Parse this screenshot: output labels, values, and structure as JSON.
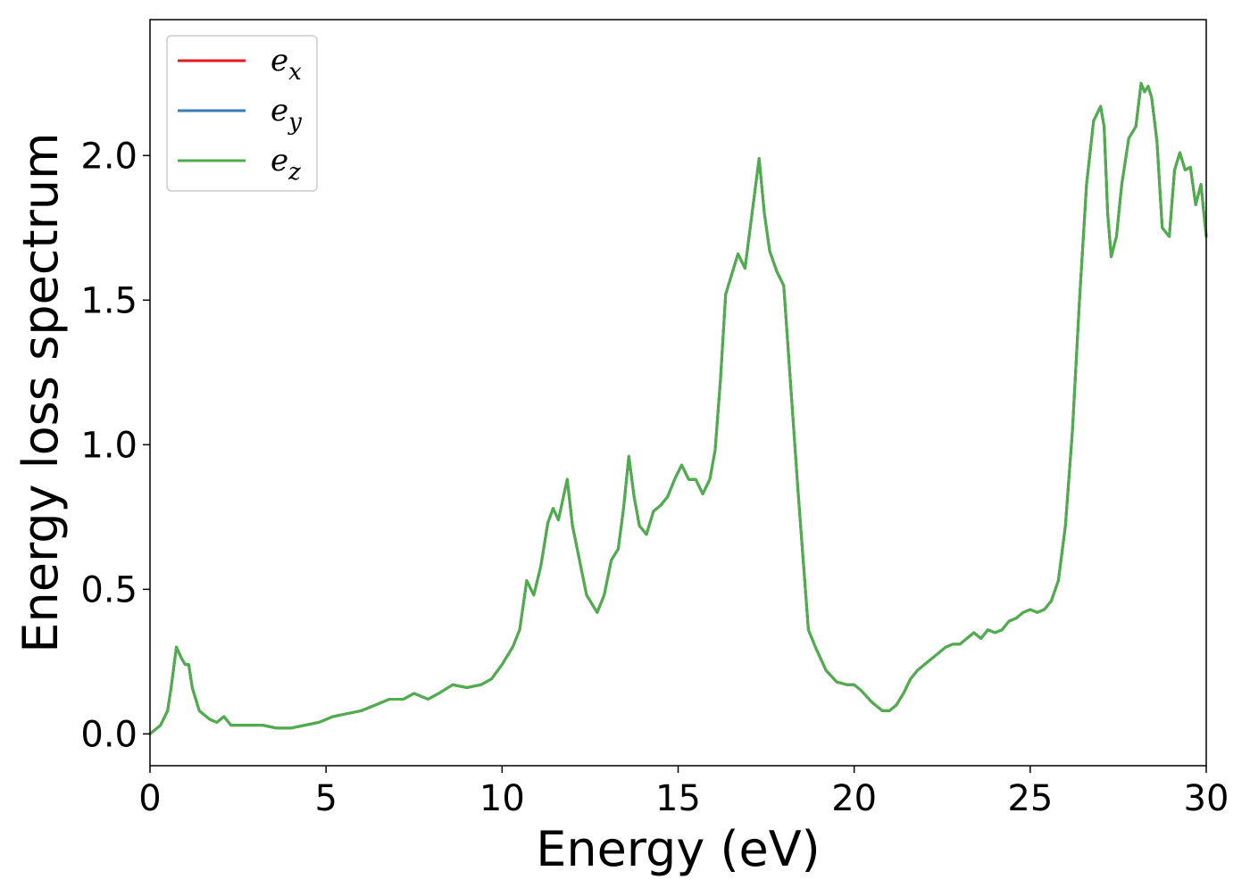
{
  "chart_data": {
    "type": "line",
    "title": "",
    "xlabel": "Energy (eV)",
    "ylabel": "Energy loss spectrum",
    "xlim": [
      0,
      30
    ],
    "ylim": [
      -0.11,
      2.47
    ],
    "xticks": [
      0,
      5,
      10,
      15,
      20,
      25,
      30
    ],
    "xtick_labels": [
      "0",
      "5",
      "10",
      "15",
      "20",
      "25",
      "30"
    ],
    "yticks": [
      0.0,
      0.5,
      1.0,
      1.5,
      2.0
    ],
    "ytick_labels": [
      "0.0",
      "0.5",
      "1.0",
      "1.5",
      "2.0"
    ],
    "grid": false,
    "legend_position": "top-left",
    "series": [
      {
        "name": "e_x",
        "label_base": "e",
        "label_sub": "x",
        "color": "#e41a1c"
      },
      {
        "name": "e_y",
        "label_base": "e",
        "label_sub": "y",
        "color": "#377eb8"
      },
      {
        "name": "e_z",
        "label_base": "e",
        "label_sub": "z",
        "color": "#4daf4a"
      }
    ],
    "x": [
      0,
      0.3,
      0.5,
      0.6,
      0.75,
      0.9,
      1.0,
      1.1,
      1.2,
      1.4,
      1.7,
      1.9,
      2.1,
      2.3,
      2.5,
      2.8,
      3.2,
      3.6,
      4.0,
      4.4,
      4.8,
      5.2,
      5.6,
      6.0,
      6.4,
      6.8,
      7.2,
      7.5,
      7.9,
      8.2,
      8.6,
      9.0,
      9.4,
      9.7,
      10.0,
      10.3,
      10.5,
      10.7,
      10.9,
      11.1,
      11.3,
      11.45,
      11.6,
      11.85,
      12.0,
      12.2,
      12.4,
      12.7,
      12.9,
      13.1,
      13.3,
      13.45,
      13.6,
      13.75,
      13.9,
      14.1,
      14.3,
      14.5,
      14.7,
      14.9,
      15.1,
      15.3,
      15.5,
      15.7,
      15.9,
      16.05,
      16.2,
      16.35,
      16.5,
      16.7,
      16.9,
      17.1,
      17.3,
      17.45,
      17.6,
      17.8,
      18.0,
      18.2,
      18.4,
      18.7,
      18.9,
      19.2,
      19.5,
      19.8,
      20.0,
      20.2,
      20.5,
      20.8,
      21.0,
      21.2,
      21.4,
      21.6,
      21.8,
      22.0,
      22.3,
      22.6,
      22.8,
      23.0,
      23.2,
      23.4,
      23.6,
      23.8,
      24.0,
      24.2,
      24.4,
      24.6,
      24.8,
      25.0,
      25.2,
      25.4,
      25.6,
      25.8,
      26.0,
      26.2,
      26.4,
      26.6,
      26.8,
      27.0,
      27.1,
      27.2,
      27.3,
      27.45,
      27.6,
      27.8,
      28.0,
      28.15,
      28.25,
      28.35,
      28.45,
      28.6,
      28.75,
      28.95,
      29.1,
      29.25,
      29.4,
      29.55,
      29.7,
      29.85,
      30.0
    ],
    "y": [
      0.0,
      0.03,
      0.08,
      0.16,
      0.3,
      0.26,
      0.24,
      0.24,
      0.16,
      0.08,
      0.05,
      0.04,
      0.06,
      0.03,
      0.03,
      0.03,
      0.03,
      0.02,
      0.02,
      0.03,
      0.04,
      0.06,
      0.07,
      0.08,
      0.1,
      0.12,
      0.12,
      0.14,
      0.12,
      0.14,
      0.17,
      0.16,
      0.17,
      0.19,
      0.24,
      0.3,
      0.36,
      0.53,
      0.48,
      0.58,
      0.73,
      0.78,
      0.74,
      0.88,
      0.72,
      0.6,
      0.48,
      0.42,
      0.48,
      0.6,
      0.64,
      0.78,
      0.96,
      0.82,
      0.72,
      0.69,
      0.77,
      0.79,
      0.82,
      0.88,
      0.93,
      0.88,
      0.88,
      0.83,
      0.88,
      0.98,
      1.22,
      1.52,
      1.58,
      1.66,
      1.61,
      1.8,
      1.99,
      1.8,
      1.67,
      1.6,
      1.55,
      1.2,
      0.85,
      0.36,
      0.3,
      0.22,
      0.18,
      0.17,
      0.17,
      0.15,
      0.11,
      0.08,
      0.08,
      0.1,
      0.14,
      0.19,
      0.22,
      0.24,
      0.27,
      0.3,
      0.31,
      0.31,
      0.33,
      0.35,
      0.33,
      0.36,
      0.35,
      0.36,
      0.39,
      0.4,
      0.42,
      0.43,
      0.42,
      0.43,
      0.46,
      0.53,
      0.72,
      1.05,
      1.5,
      1.9,
      2.12,
      2.17,
      2.1,
      1.8,
      1.65,
      1.72,
      1.9,
      2.06,
      2.1,
      2.25,
      2.22,
      2.24,
      2.2,
      2.05,
      1.75,
      1.72,
      1.95,
      2.01,
      1.95,
      1.96,
      1.83,
      1.9,
      1.72
    ]
  }
}
